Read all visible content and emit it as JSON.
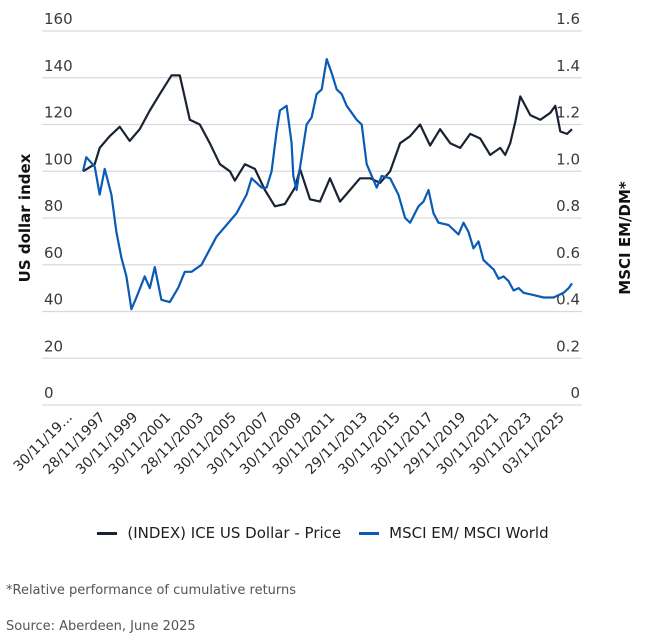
{
  "chart_data": {
    "type": "line",
    "title": "",
    "xlabel": "",
    "ylabel_left": "US dollar index",
    "ylabel_right": "MSCI EM/DM*",
    "ylim_left": [
      0,
      160
    ],
    "ylim_right": [
      0,
      1.6
    ],
    "yticks_left": [
      "160",
      "140",
      "120",
      "100",
      "80",
      "60",
      "40",
      "20",
      "0"
    ],
    "yticks_right": [
      "1.6",
      "1.4",
      "1.2",
      "1.0",
      "0.8",
      "0.6",
      "0.4",
      "0.2",
      "0"
    ],
    "xticks": [
      "30/11/19...",
      "28/11/1997",
      "30/11/1999",
      "30/11/2001",
      "28/11/2003",
      "30/11/2005",
      "30/11/2007",
      "30/11/2009",
      "30/11/2011",
      "29/11/2013",
      "30/11/2015",
      "30/11/2017",
      "29/11/2019",
      "30/11/2021",
      "30/11/2023",
      "03/11/2025"
    ],
    "grid": true,
    "legend_position": "bottom-center",
    "x_range_years": [
      1995.9,
      2025.5
    ],
    "series": [
      {
        "name": "(INDEX) ICE US Dollar - Price",
        "axis": "left",
        "color": "#1a2333",
        "x": [
          1995.9,
          1996.6,
          1996.9,
          1997.5,
          1998.1,
          1998.7,
          1999.3,
          1999.9,
          2000.5,
          2001.2,
          2001.7,
          2002.3,
          2002.9,
          2003.5,
          2004.1,
          2004.7,
          2005.0,
          2005.6,
          2006.2,
          2006.8,
          2007.4,
          2008.0,
          2008.6,
          2008.9,
          2009.5,
          2010.1,
          2010.7,
          2011.3,
          2011.9,
          2012.5,
          2013.1,
          2013.7,
          2014.3,
          2014.9,
          2015.5,
          2016.1,
          2016.7,
          2017.3,
          2017.9,
          2018.5,
          2019.1,
          2019.7,
          2020.3,
          2020.9,
          2021.2,
          2021.5,
          2021.8,
          2022.1,
          2022.7,
          2023.3,
          2023.9,
          2024.2,
          2024.5,
          2024.9,
          2025.2
        ],
        "values": [
          100,
          103,
          110,
          115,
          119,
          113,
          118,
          126,
          133,
          141,
          141,
          122,
          120,
          112,
          103,
          100,
          96,
          103,
          101,
          92,
          85,
          86,
          93,
          101,
          88,
          87,
          97,
          87,
          92,
          97,
          97,
          95,
          100,
          112,
          115,
          120,
          111,
          118,
          112,
          110,
          116,
          114,
          107,
          110,
          107,
          112,
          121,
          132,
          124,
          122,
          125,
          128,
          117,
          116,
          118
        ]
      },
      {
        "name": "MSCI EM/ MSCI World",
        "axis": "right",
        "color": "#0a5bb5",
        "x": [
          1995.9,
          1996.1,
          1996.6,
          1996.9,
          1997.2,
          1997.6,
          1997.9,
          1998.2,
          1998.5,
          1998.8,
          1999.1,
          1999.6,
          1999.9,
          2000.2,
          2000.6,
          2001.1,
          2001.6,
          2002.0,
          2002.4,
          2003.0,
          2003.3,
          2003.9,
          2004.5,
          2005.1,
          2005.7,
          2006.0,
          2006.6,
          2006.9,
          2007.2,
          2007.5,
          2007.7,
          2008.1,
          2008.4,
          2008.5,
          2008.7,
          2009.0,
          2009.3,
          2009.6,
          2009.9,
          2010.2,
          2010.5,
          2010.8,
          2011.1,
          2011.4,
          2011.7,
          2012.3,
          2012.6,
          2012.9,
          2013.2,
          2013.5,
          2013.8,
          2014.3,
          2014.8,
          2015.2,
          2015.5,
          2016.0,
          2016.3,
          2016.6,
          2016.9,
          2017.2,
          2017.8,
          2018.4,
          2018.7,
          2019.0,
          2019.3,
          2019.6,
          2019.9,
          2020.2,
          2020.5,
          2020.8,
          2021.1,
          2021.4,
          2021.7,
          2022.0,
          2022.3,
          2022.9,
          2023.5,
          2024.1,
          2024.7,
          2025.0,
          2025.2
        ],
        "values": [
          1.0,
          1.06,
          1.02,
          0.9,
          1.01,
          0.9,
          0.74,
          0.63,
          0.55,
          0.41,
          0.46,
          0.55,
          0.5,
          0.59,
          0.45,
          0.44,
          0.5,
          0.57,
          0.57,
          0.6,
          0.64,
          0.72,
          0.77,
          0.82,
          0.9,
          0.97,
          0.93,
          0.93,
          1.0,
          1.17,
          1.26,
          1.28,
          1.12,
          0.98,
          0.92,
          1.06,
          1.2,
          1.23,
          1.33,
          1.35,
          1.48,
          1.42,
          1.35,
          1.33,
          1.28,
          1.22,
          1.2,
          1.03,
          0.98,
          0.93,
          0.98,
          0.97,
          0.9,
          0.8,
          0.78,
          0.85,
          0.87,
          0.92,
          0.82,
          0.78,
          0.77,
          0.73,
          0.78,
          0.74,
          0.67,
          0.7,
          0.62,
          0.6,
          0.58,
          0.54,
          0.55,
          0.53,
          0.49,
          0.5,
          0.48,
          0.47,
          0.46,
          0.46,
          0.48,
          0.5,
          0.52
        ]
      }
    ]
  },
  "legend": {
    "items": [
      {
        "label": "(INDEX) ICE US Dollar - Price",
        "color": "#1a2333"
      },
      {
        "label": "MSCI EM/ MSCI World",
        "color": "#0a5bb5"
      }
    ]
  },
  "footnotes": {
    "note": "*Relative performance of cumulative returns",
    "source": "Source: Aberdeen, June 2025"
  }
}
